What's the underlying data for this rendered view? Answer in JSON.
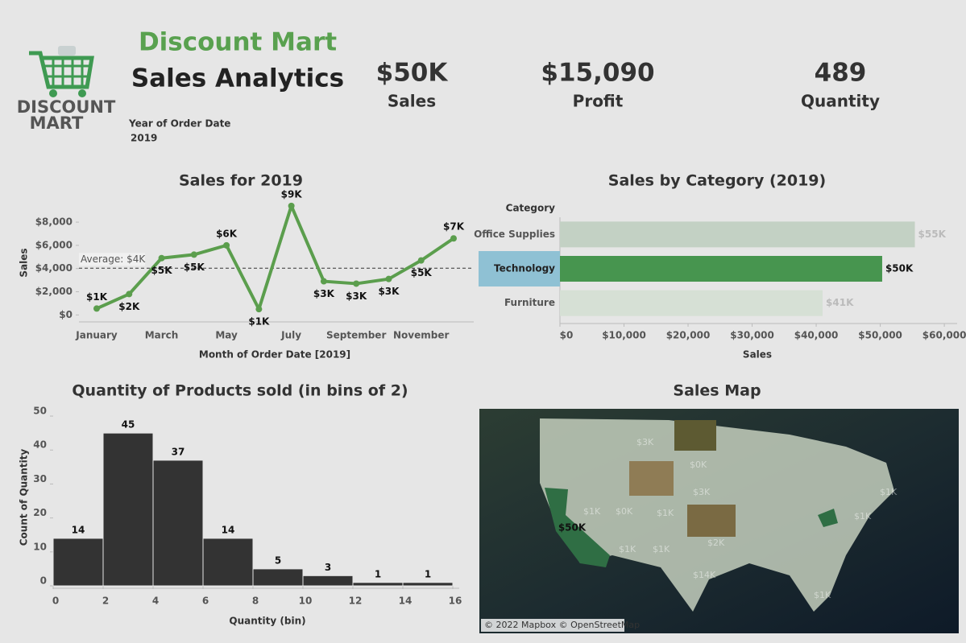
{
  "header": {
    "title": "Discount Mart",
    "subtitle": "Sales Analytics",
    "logo": [
      "DISCOUNT",
      "MART"
    ],
    "filter": {
      "label": "Year of Order Date",
      "value": "2019"
    }
  },
  "kpis": [
    {
      "value": "$50K",
      "label": "Sales"
    },
    {
      "value": "$15,090",
      "label": "Profit"
    },
    {
      "value": "489",
      "label": "Quantity"
    }
  ],
  "chart_data": [
    {
      "type": "line",
      "title": "Sales for 2019",
      "x_label": "Month of Order Date [2019]",
      "y_label": "Sales",
      "categories": [
        "January",
        null,
        "March",
        null,
        "May",
        null,
        "July",
        null,
        "September",
        null,
        "November",
        null
      ],
      "values": [
        550,
        1800,
        4900,
        5200,
        6000,
        500,
        9400,
        2900,
        2700,
        3100,
        4700,
        6600
      ],
      "value_labels": [
        "$1K",
        "$2K",
        "$5K",
        "$5K",
        "$6K",
        "$1K",
        "$9K",
        "$3K",
        "$3K",
        "$3K",
        "$5K",
        "$7K"
      ],
      "color": "#5b9e4d",
      "ylim": [
        -600,
        9600
      ],
      "yticks": [
        {
          "value": 0,
          "label": "$0"
        },
        {
          "value": 2000,
          "label": "$2,000"
        },
        {
          "value": 4000,
          "label": "$4,000"
        },
        {
          "value": 6000,
          "label": "$6,000"
        },
        {
          "value": 8000,
          "label": "$8,000"
        }
      ],
      "average": {
        "value": 4029,
        "label": "Average: $4K"
      }
    },
    {
      "type": "hbar",
      "title": "Sales by Category (2019)",
      "category_label": "Category",
      "x_label": "Sales",
      "categories": [
        "Office Supplies",
        "Technology",
        "Furniture"
      ],
      "values": [
        55400,
        50300,
        41000
      ],
      "value_labels": [
        "$55K",
        "$50K",
        "$41K"
      ],
      "colors": [
        "#c3d1c4",
        "#47954f",
        "#d6e0d5"
      ],
      "selected": "Technology",
      "xlim": [
        0,
        62000
      ],
      "xticks": [
        {
          "value": 0,
          "label": "$0"
        },
        {
          "value": 10000,
          "label": "$10,000"
        },
        {
          "value": 20000,
          "label": "$20,000"
        },
        {
          "value": 30000,
          "label": "$30,000"
        },
        {
          "value": 40000,
          "label": "$40,000"
        },
        {
          "value": 50000,
          "label": "$50,000"
        },
        {
          "value": 60000,
          "label": "$60,000"
        }
      ]
    },
    {
      "type": "histogram",
      "title": "Quantity of Products sold (in bins of 2)",
      "x_label": "Quantity (bin)",
      "y_label": "Count of Quantity",
      "bins": [
        0,
        2,
        4,
        6,
        8,
        10,
        12,
        14,
        16
      ],
      "values": [
        14,
        45,
        37,
        14,
        5,
        3,
        1,
        1
      ],
      "color": "#333333",
      "xlim": [
        0,
        16
      ],
      "xticks": [
        0,
        2,
        4,
        6,
        8,
        10,
        12,
        14,
        16
      ],
      "ylim": [
        0,
        52
      ],
      "yticks": [
        0,
        10,
        20,
        30,
        40,
        50
      ]
    }
  ],
  "map": {
    "title": "Sales Map",
    "labels": [
      "$50K",
      "$3K",
      "$0K",
      "$3K",
      "$1K",
      "$0K",
      "$1K",
      "$2K",
      "$1K",
      "$1K",
      "$14K",
      "$1K",
      "$1K",
      "$1K"
    ],
    "attribution": "© 2022 Mapbox © OpenStreetMap"
  }
}
